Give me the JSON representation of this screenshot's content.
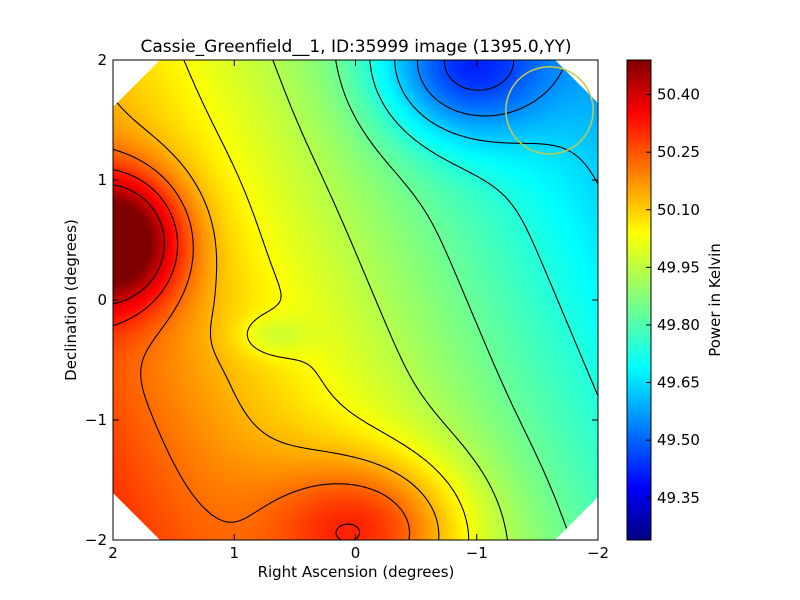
{
  "chart_data": {
    "type": "heatmap",
    "title": "Cassie_Greenfield__1, ID:35999 image (1395.0,YY)",
    "xlabel": "Right Ascension (degrees)",
    "ylabel": "Declination (degrees)",
    "xlim": [
      2,
      -2
    ],
    "ylim": [
      -2,
      2
    ],
    "x_ticks": [
      {
        "value": 2,
        "label": "2"
      },
      {
        "value": 1,
        "label": "1"
      },
      {
        "value": 0,
        "label": "0"
      },
      {
        "value": -1,
        "label": "−1"
      },
      {
        "value": -2,
        "label": "−2"
      }
    ],
    "y_ticks": [
      {
        "value": 2,
        "label": "2"
      },
      {
        "value": 1,
        "label": "1"
      },
      {
        "value": 0,
        "label": "0"
      },
      {
        "value": -1,
        "label": "−1"
      },
      {
        "value": -2,
        "label": "−2"
      }
    ],
    "colorbar": {
      "label": "Power in Kelvin",
      "range": [
        49.24,
        50.49
      ],
      "ticks": [
        {
          "value": 50.4,
          "label": "50.40"
        },
        {
          "value": 50.25,
          "label": "50.25"
        },
        {
          "value": 50.1,
          "label": "50.10"
        },
        {
          "value": 49.95,
          "label": "49.95"
        },
        {
          "value": 49.8,
          "label": "49.80"
        },
        {
          "value": 49.65,
          "label": "49.65"
        },
        {
          "value": 49.5,
          "label": "49.50"
        },
        {
          "value": 49.35,
          "label": "49.35"
        }
      ],
      "colormap": "jet"
    },
    "field_features": [
      {
        "kind": "maximum",
        "ra": 2.0,
        "dec": 0.5,
        "value": 50.48
      },
      {
        "kind": "local maximum",
        "ra": -0.1,
        "dec": -1.9,
        "value": 50.2
      },
      {
        "kind": "minimum",
        "ra": -0.9,
        "dec": 1.95,
        "value": 49.25
      },
      {
        "kind": "local minimum",
        "ra": 0.7,
        "dec": -0.3,
        "value": 49.82
      }
    ],
    "marker": {
      "shape": "circle",
      "ra": -1.6,
      "dec": 1.58,
      "radius_deg": 0.36,
      "color": "#c8c84a"
    },
    "grid": false
  }
}
